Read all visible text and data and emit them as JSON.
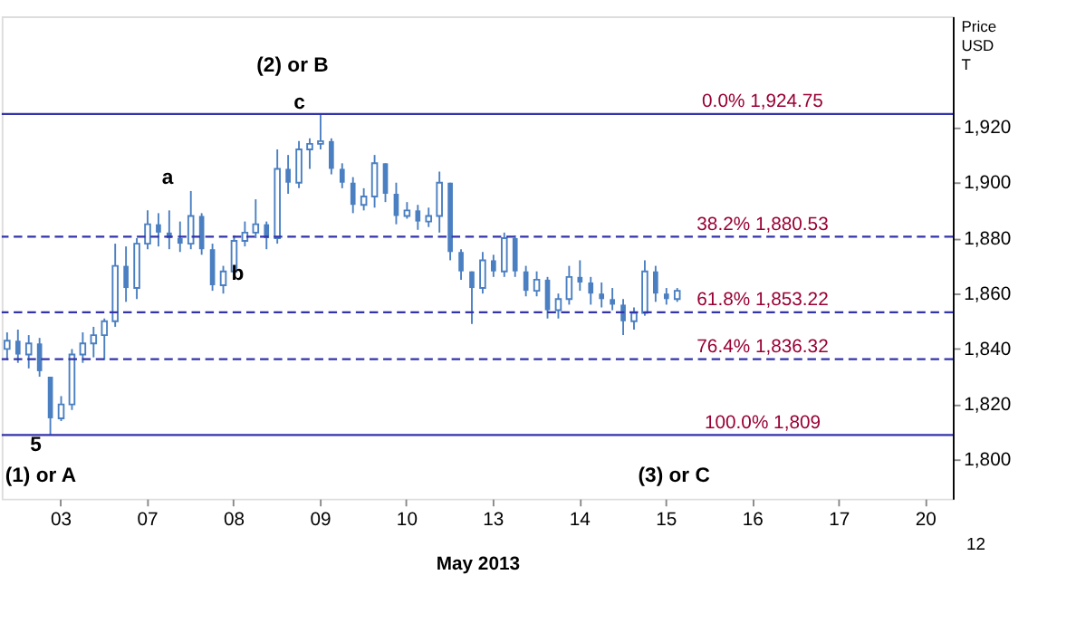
{
  "chart_data": {
    "type": "candlestick",
    "xlabel": "May 2013",
    "ylabel": "Price USD T",
    "color": "#4a7fc1",
    "categories": [
      null,
      null,
      null,
      null,
      null,
      "03",
      null,
      null,
      null,
      null,
      null,
      null,
      null,
      "07",
      null,
      null,
      null,
      null,
      null,
      null,
      null,
      "08",
      null,
      null,
      null,
      null,
      null,
      null,
      null,
      "09",
      null,
      null,
      null,
      null,
      null,
      null,
      null,
      "10",
      null,
      null,
      null,
      null,
      null,
      null,
      null,
      "13",
      null,
      null,
      null,
      null,
      null,
      null,
      null,
      "14",
      null,
      null,
      null,
      null,
      null,
      null,
      null,
      "15",
      null,
      null,
      null,
      null,
      null,
      null,
      null,
      "16",
      null,
      null,
      null,
      null,
      null,
      null,
      null,
      "17",
      null,
      null,
      null,
      null,
      null,
      null,
      null,
      "20",
      null,
      null
    ],
    "ohlc": [
      [
        1840,
        1846,
        1836,
        1843
      ],
      [
        1843,
        1847,
        1835,
        1838
      ],
      [
        1838,
        1845,
        1833,
        1842
      ],
      [
        1842,
        1844,
        1830,
        1832
      ],
      [
        1830,
        1830,
        1809,
        1815
      ],
      [
        1815,
        1823,
        1814,
        1820
      ],
      [
        1820,
        1840,
        1818,
        1838
      ],
      [
        1838,
        1846,
        1835,
        1842
      ],
      [
        1842,
        1848,
        1837,
        1845
      ],
      [
        1845,
        1851,
        1836,
        1850
      ],
      [
        1850,
        1878,
        1848,
        1870
      ],
      [
        1870,
        1877,
        1857,
        1862
      ],
      [
        1862,
        1880,
        1858,
        1878
      ],
      [
        1878,
        1890,
        1876,
        1885
      ],
      [
        1885,
        1889,
        1877,
        1882
      ],
      [
        1882,
        1890,
        1876,
        1880
      ],
      [
        1880,
        1886,
        1875,
        1878
      ],
      [
        1878,
        1897,
        1876,
        1888
      ],
      [
        1888,
        1889,
        1874,
        1876
      ],
      [
        1876,
        1878,
        1861,
        1863
      ],
      [
        1863,
        1870,
        1860,
        1868
      ],
      [
        1868,
        1881,
        1867,
        1879
      ],
      [
        1879,
        1886,
        1877,
        1882
      ],
      [
        1882,
        1894,
        1880,
        1885
      ],
      [
        1885,
        1886,
        1876,
        1880
      ],
      [
        1880,
        1912,
        1878,
        1905
      ],
      [
        1905,
        1910,
        1896,
        1900
      ],
      [
        1900,
        1915,
        1898,
        1912
      ],
      [
        1912,
        1916,
        1905,
        1914
      ],
      [
        1914,
        1924.75,
        1912,
        1915
      ],
      [
        1915,
        1916,
        1903,
        1905
      ],
      [
        1905,
        1907,
        1898,
        1900
      ],
      [
        1900,
        1902,
        1889,
        1892
      ],
      [
        1892,
        1898,
        1890,
        1895
      ],
      [
        1895,
        1910,
        1891,
        1907
      ],
      [
        1907,
        1907,
        1893,
        1896
      ],
      [
        1896,
        1900,
        1885,
        1888
      ],
      [
        1888,
        1893,
        1887,
        1890
      ],
      [
        1890,
        1892,
        1883,
        1886
      ],
      [
        1886,
        1891,
        1884,
        1888
      ],
      [
        1888,
        1904,
        1882,
        1900
      ],
      [
        1900,
        1900,
        1872,
        1875
      ],
      [
        1875,
        1876,
        1865,
        1868
      ],
      [
        1868,
        1868,
        1849,
        1862
      ],
      [
        1862,
        1875,
        1860,
        1872
      ],
      [
        1872,
        1874,
        1866,
        1868
      ],
      [
        1868,
        1882,
        1866,
        1880
      ],
      [
        1880,
        1881,
        1866,
        1868
      ],
      [
        1868,
        1870,
        1859,
        1861
      ],
      [
        1861,
        1868,
        1859,
        1865
      ],
      [
        1865,
        1866,
        1851,
        1854
      ],
      [
        1854,
        1860,
        1851,
        1858
      ],
      [
        1858,
        1870,
        1856,
        1866
      ],
      [
        1866,
        1872,
        1861,
        1864
      ],
      [
        1864,
        1866,
        1856,
        1860
      ],
      [
        1860,
        1864,
        1855,
        1858
      ],
      [
        1858,
        1862,
        1854,
        1856
      ],
      [
        1856,
        1858,
        1845,
        1850
      ],
      [
        1850,
        1855,
        1847,
        1853
      ],
      [
        1853,
        1872,
        1852,
        1868
      ],
      [
        1868,
        1870,
        1857,
        1860
      ],
      [
        1860,
        1862,
        1856,
        1858
      ],
      [
        1858,
        1862,
        1857,
        1861
      ],
      null,
      null,
      null,
      null,
      null,
      null,
      null,
      null,
      null,
      null,
      null,
      null,
      null,
      null,
      null,
      null,
      null,
      null,
      null,
      null,
      null,
      null,
      null,
      null,
      null
    ],
    "ylim": [
      1786,
      1960
    ],
    "yticks": [
      {
        "value": 1800,
        "label": "1,800"
      },
      {
        "value": 1820,
        "label": "1,820"
      },
      {
        "value": 1840,
        "label": "1,840"
      },
      {
        "value": 1860,
        "label": "1,860"
      },
      {
        "value": 1880,
        "label": "1,880"
      },
      {
        "value": 1900,
        "label": "1,900"
      },
      {
        "value": 1920,
        "label": "1,920"
      }
    ],
    "ref_lines": [
      {
        "axis": "y",
        "value": 1924.75,
        "label": "0.0%  1,924.75",
        "color": "#3333aa",
        "line_style": "solid"
      },
      {
        "axis": "y",
        "value": 1880.53,
        "label": "38.2%  1,880.53",
        "color": "#3333aa",
        "line_style": "dashed"
      },
      {
        "axis": "y",
        "value": 1853.22,
        "label": "61.8%  1,853.22",
        "color": "#3333aa",
        "line_style": "dashed"
      },
      {
        "axis": "y",
        "value": 1836.32,
        "label": "76.4%  1,836.32",
        "color": "#3333aa",
        "line_style": "dashed"
      },
      {
        "axis": "y",
        "value": 1809,
        "label": "100.0%  1,809",
        "color": "#3333aa",
        "line_style": "solid"
      }
    ],
    "annotations": [
      "a",
      "b",
      "c",
      "(2) or B",
      "5",
      "(1) or A",
      "(3) or C",
      "12"
    ],
    "grid": false
  }
}
